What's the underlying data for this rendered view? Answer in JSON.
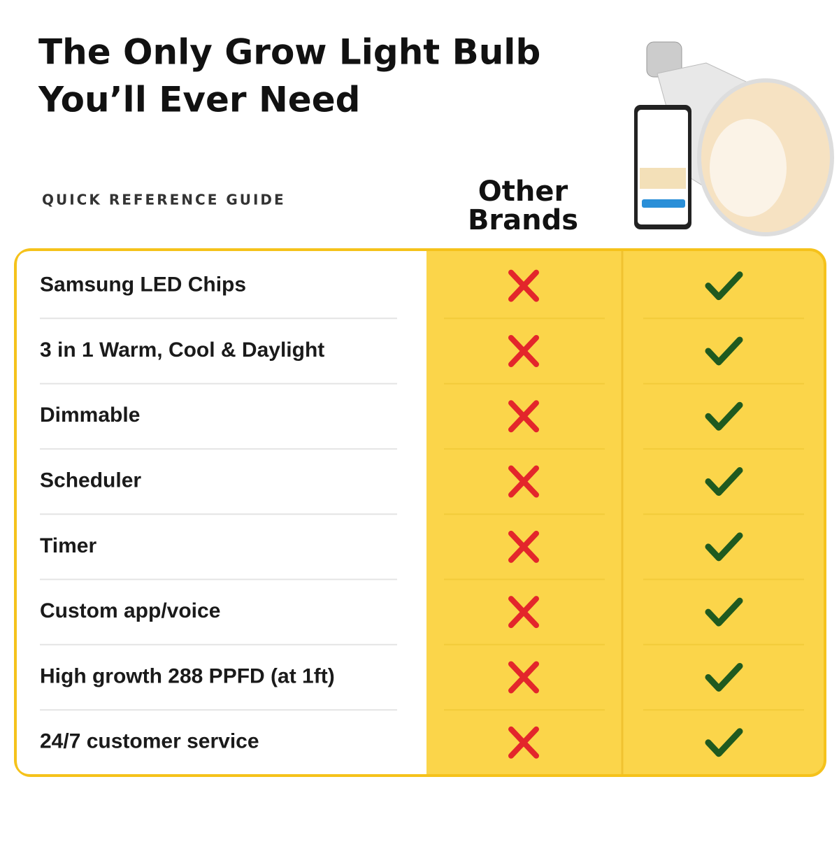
{
  "header": {
    "title_lines": [
      "The Only Grow Light Bulb",
      "You’ll Ever Need"
    ],
    "subtitle": "QUICK REFERENCE GUIDE"
  },
  "columns": {
    "other": [
      "Other",
      "Brands"
    ]
  },
  "table": {
    "rows": [
      "Samsung LED Chips",
      "3 in 1 Warm, Cool & Daylight",
      "Dimmable",
      "Scheduler",
      "Timer",
      "Custom app/voice",
      "High growth 288 PPFD (at 1ft)",
      "24/7 customer service"
    ]
  }
}
